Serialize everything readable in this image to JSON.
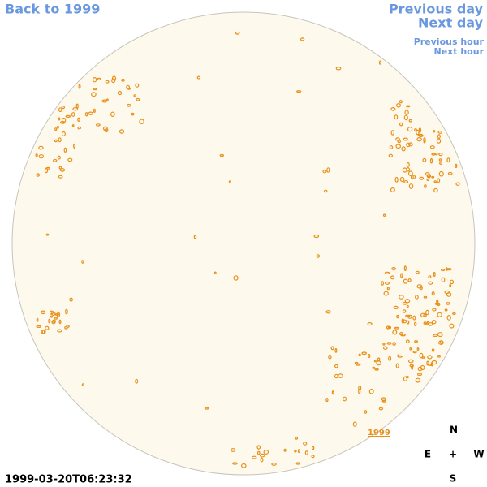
{
  "navigation": {
    "back": "Back to 1999",
    "previous_day": "Previous day",
    "next_day": "Next day",
    "previous_hour": "Previous hour",
    "next_hour": "Next hour"
  },
  "image": {
    "year_link": "1999",
    "timestamp": "1999-03-20T06:23:32"
  },
  "compass": {
    "north": "N",
    "east": "E",
    "center": "+",
    "west": "W",
    "south": "S"
  }
}
